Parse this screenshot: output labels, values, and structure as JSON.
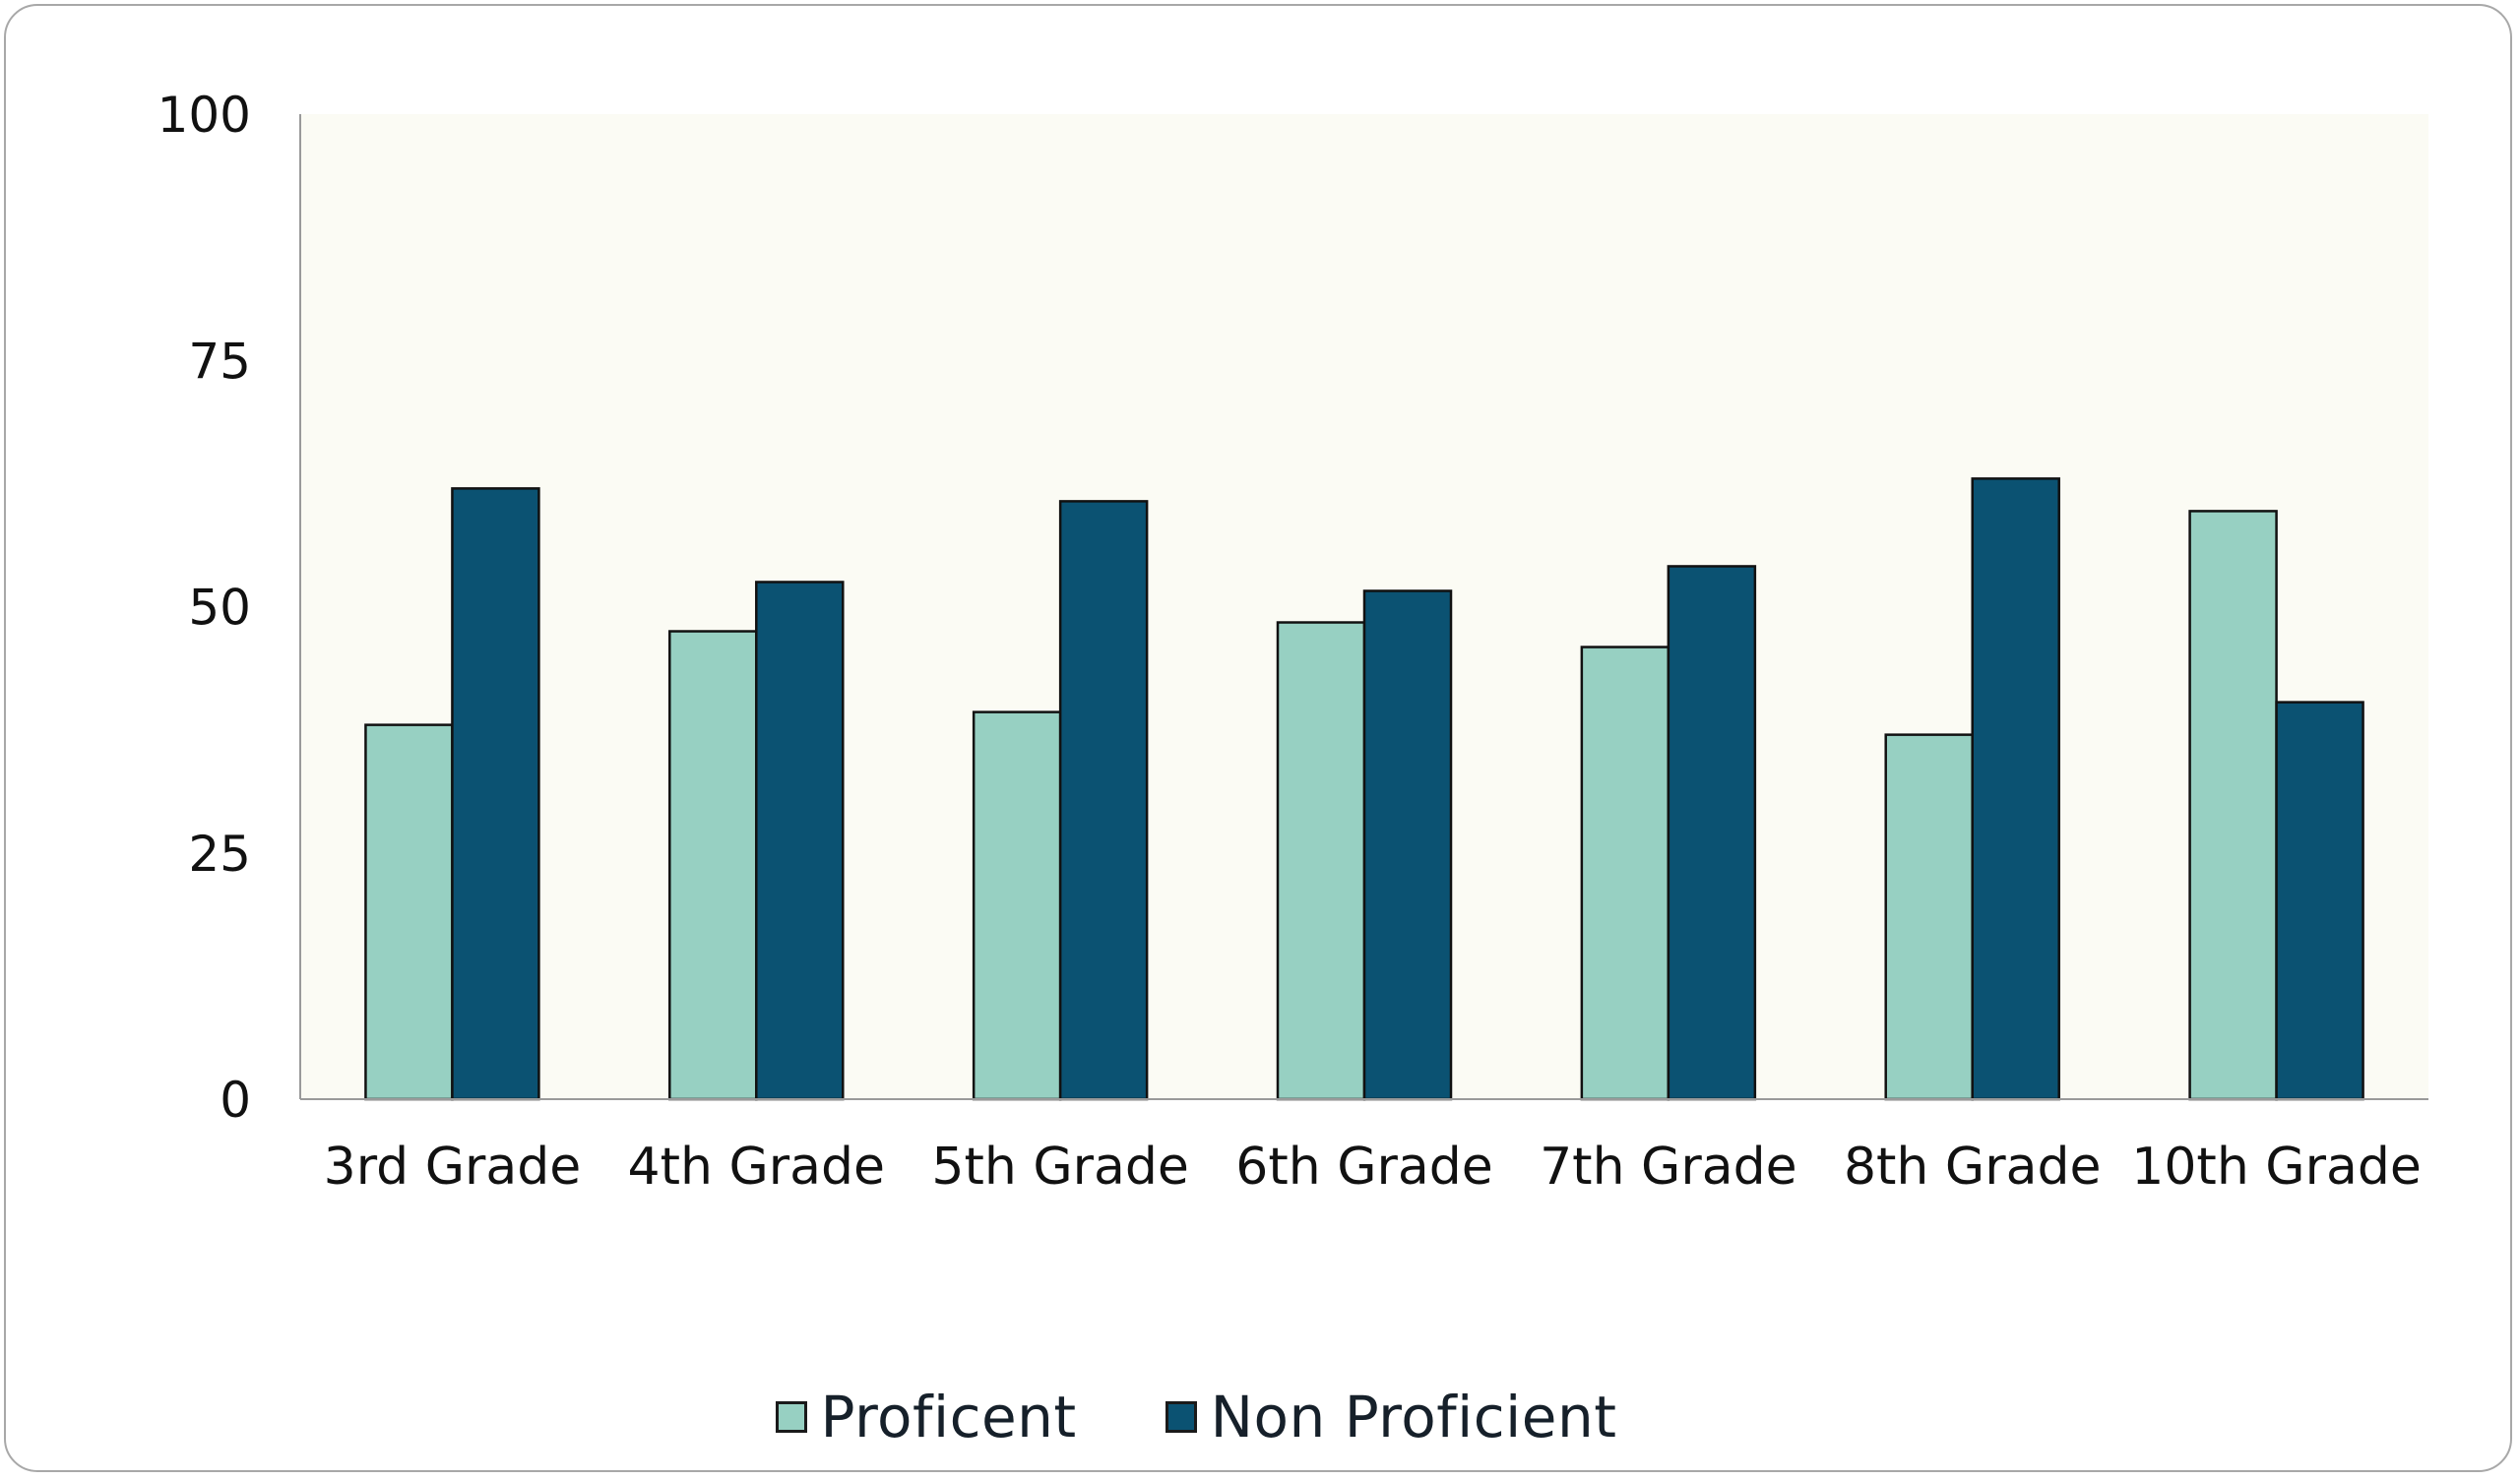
{
  "chart_data": {
    "type": "bar",
    "categories": [
      "3rd Grade",
      "4th Grade",
      "5th Grade",
      "6th Grade",
      "7th Grade",
      "8th Grade",
      "10th Grade"
    ],
    "series": [
      {
        "name": "Proficent",
        "values": [
          38,
          47.5,
          39.3,
          48.4,
          45.9,
          37,
          59.7
        ],
        "color": "#97d0c2"
      },
      {
        "name": "Non Proficient",
        "values": [
          62,
          52.5,
          60.7,
          51.6,
          54.1,
          63,
          40.3
        ],
        "color": "#0b5272"
      }
    ],
    "ylim": [
      0,
      100
    ],
    "yticks": [
      0,
      25,
      50,
      75,
      100
    ],
    "plot_background": "#fbfbf4",
    "grid": false,
    "legend_position": "bottom"
  }
}
